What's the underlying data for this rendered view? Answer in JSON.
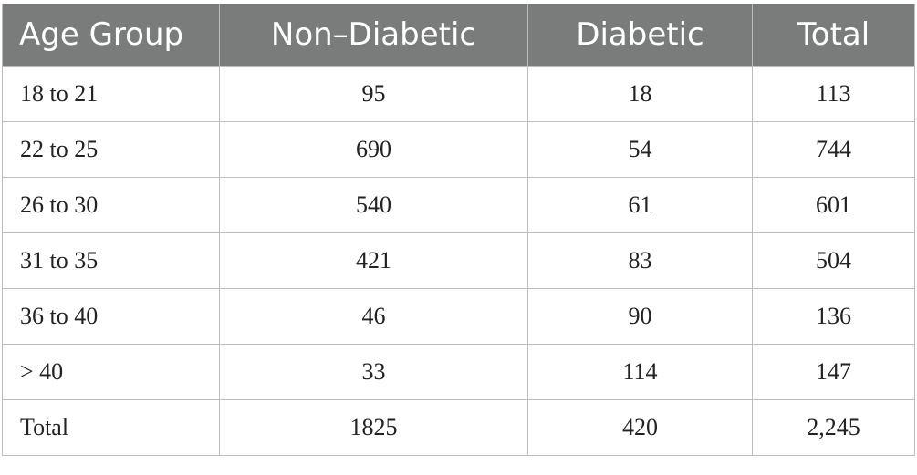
{
  "table": {
    "headers": [
      "Age Group",
      "Non–Diabetic",
      "Diabetic",
      "Total"
    ],
    "rows": [
      [
        "18 to 21",
        "95",
        "18",
        "113"
      ],
      [
        "22 to 25",
        "690",
        "54",
        "744"
      ],
      [
        "26 to 30",
        "540",
        "61",
        "601"
      ],
      [
        "31 to 35",
        "421",
        "83",
        "504"
      ],
      [
        "36 to 40",
        "46",
        "90",
        "136"
      ],
      [
        "> 40",
        "33",
        "114",
        "147"
      ],
      [
        "Total",
        "1825",
        "420",
        "2,245"
      ]
    ]
  },
  "colors": {
    "header_background": "#7a7b7b",
    "header_text": "#ffffff",
    "grid_line": "#bdbdbd"
  }
}
